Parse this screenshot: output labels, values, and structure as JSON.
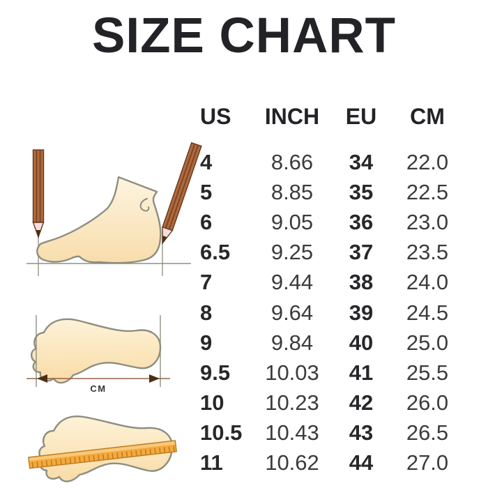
{
  "title": "SIZE CHART",
  "table": {
    "headers": [
      "US",
      "INCH",
      "EU",
      "CM"
    ],
    "rows": [
      [
        "4",
        "8.66",
        "34",
        "22.0"
      ],
      [
        "5",
        "8.85",
        "35",
        "22.5"
      ],
      [
        "6",
        "9.05",
        "36",
        "23.0"
      ],
      [
        "6.5",
        "9.25",
        "37",
        "23.5"
      ],
      [
        "7",
        "9.44",
        "38",
        "24.0"
      ],
      [
        "8",
        "9.64",
        "39",
        "24.5"
      ],
      [
        "9",
        "9.84",
        "40",
        "25.0"
      ],
      [
        "9.5",
        "10.03",
        "41",
        "25.5"
      ],
      [
        "10",
        "10.23",
        "42",
        "26.0"
      ],
      [
        "10.5",
        "10.43",
        "43",
        "26.5"
      ],
      [
        "11",
        "10.62",
        "44",
        "27.0"
      ]
    ]
  },
  "illustrations": {
    "cm_label": "CM",
    "icons": [
      "foot-side-with-pencils-icon",
      "footprint-length-arrow-icon",
      "footprint-ruler-icon"
    ]
  },
  "colors": {
    "text": "#232327",
    "table_value_text": "#3b3b3d",
    "foot_fill_light": "#fdf3dc",
    "foot_fill_dark": "#f8ddab",
    "foot_stroke": "#8d8d80",
    "pencil_body": "#b16a3e",
    "pencil_stripe": "#7e4526",
    "pencil_tip": "#f6dede",
    "pencil_lead": "#4f2f14",
    "ruler_fill": "#f4a93f",
    "ruler_tick": "#c07c1c",
    "arrow_head": "#4a2f12",
    "measure_line": "#8d8d80"
  },
  "chart_data": {
    "type": "table",
    "title": "SIZE CHART",
    "columns": [
      "US",
      "INCH",
      "EU",
      "CM"
    ],
    "rows": [
      [
        4,
        8.66,
        34,
        22.0
      ],
      [
        5,
        8.85,
        35,
        22.5
      ],
      [
        6,
        9.05,
        36,
        23.0
      ],
      [
        6.5,
        9.25,
        37,
        23.5
      ],
      [
        7,
        9.44,
        38,
        24.0
      ],
      [
        8,
        9.64,
        39,
        24.5
      ],
      [
        9,
        9.84,
        40,
        25.0
      ],
      [
        9.5,
        10.03,
        41,
        25.5
      ],
      [
        10,
        10.23,
        42,
        26.0
      ],
      [
        10.5,
        10.43,
        43,
        26.5
      ],
      [
        11,
        10.62,
        44,
        27.0
      ]
    ]
  }
}
